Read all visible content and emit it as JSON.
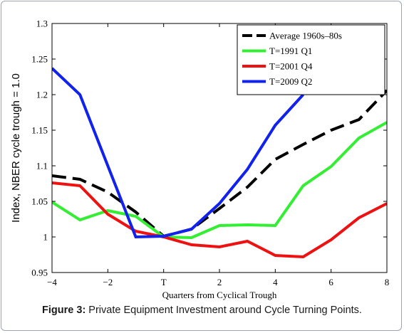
{
  "chart_data": {
    "type": "line",
    "xlabel": "Quarters from Cyclical Trough",
    "ylabel": "Index, NBER cycle trough = 1.0",
    "xlim": [
      -4,
      8
    ],
    "ylim": [
      0.95,
      1.3
    ],
    "x_ticks": [
      {
        "value": -4,
        "label": "−4"
      },
      {
        "value": -2,
        "label": "−2"
      },
      {
        "value": 0,
        "label": "T"
      },
      {
        "value": 2,
        "label": "2"
      },
      {
        "value": 4,
        "label": "4"
      },
      {
        "value": 6,
        "label": "6"
      },
      {
        "value": 8,
        "label": "8"
      }
    ],
    "y_ticks": [
      {
        "value": 0.95,
        "label": "0.95"
      },
      {
        "value": 1.0,
        "label": "1"
      },
      {
        "value": 1.05,
        "label": "1.05"
      },
      {
        "value": 1.1,
        "label": "1.1"
      },
      {
        "value": 1.15,
        "label": "1.15"
      },
      {
        "value": 1.2,
        "label": "1.2"
      },
      {
        "value": 1.25,
        "label": "1.25"
      },
      {
        "value": 1.3,
        "label": "1.3"
      }
    ],
    "legend_position": "top-right",
    "grid": false,
    "series": [
      {
        "name": "Average 1960s–80s",
        "color": "#000000",
        "dashed": true,
        "x": [
          -4,
          -3,
          -2,
          -1,
          0,
          1,
          2,
          3,
          4,
          5,
          6,
          7,
          8
        ],
        "y": [
          1.086,
          1.081,
          1.063,
          1.035,
          1.001,
          1.011,
          1.04,
          1.07,
          1.109,
          1.13,
          1.15,
          1.165,
          1.206
        ]
      },
      {
        "name": "T=1991 Q1",
        "color": "#33ee33",
        "dashed": false,
        "x": [
          -4,
          -3,
          -2,
          -1,
          0,
          1,
          2,
          3,
          4,
          5,
          6,
          7,
          8
        ],
        "y": [
          1.049,
          1.024,
          1.037,
          1.029,
          1.0,
          0.999,
          1.016,
          1.017,
          1.016,
          1.072,
          1.099,
          1.139,
          1.161
        ]
      },
      {
        "name": "T=2001 Q4",
        "color": "#ee1111",
        "dashed": false,
        "x": [
          -4,
          -3,
          -2,
          -1,
          0,
          1,
          2,
          3,
          4,
          5,
          6,
          7,
          8
        ],
        "y": [
          1.076,
          1.072,
          1.032,
          1.008,
          1.0,
          0.989,
          0.986,
          0.994,
          0.974,
          0.972,
          0.996,
          1.027,
          1.047
        ]
      },
      {
        "name": "T=2009 Q2",
        "color": "#1122ee",
        "dashed": false,
        "x": [
          -4,
          -3,
          -2,
          -1,
          0,
          1,
          2,
          3,
          4,
          5
        ],
        "y": [
          1.237,
          1.2,
          1.1,
          1.0,
          1.001,
          1.011,
          1.047,
          1.095,
          1.157,
          1.2
        ]
      }
    ]
  },
  "caption": {
    "prefix": "Figure 3:",
    "text": " Private Equipment Investment around Cycle Turning Points."
  }
}
